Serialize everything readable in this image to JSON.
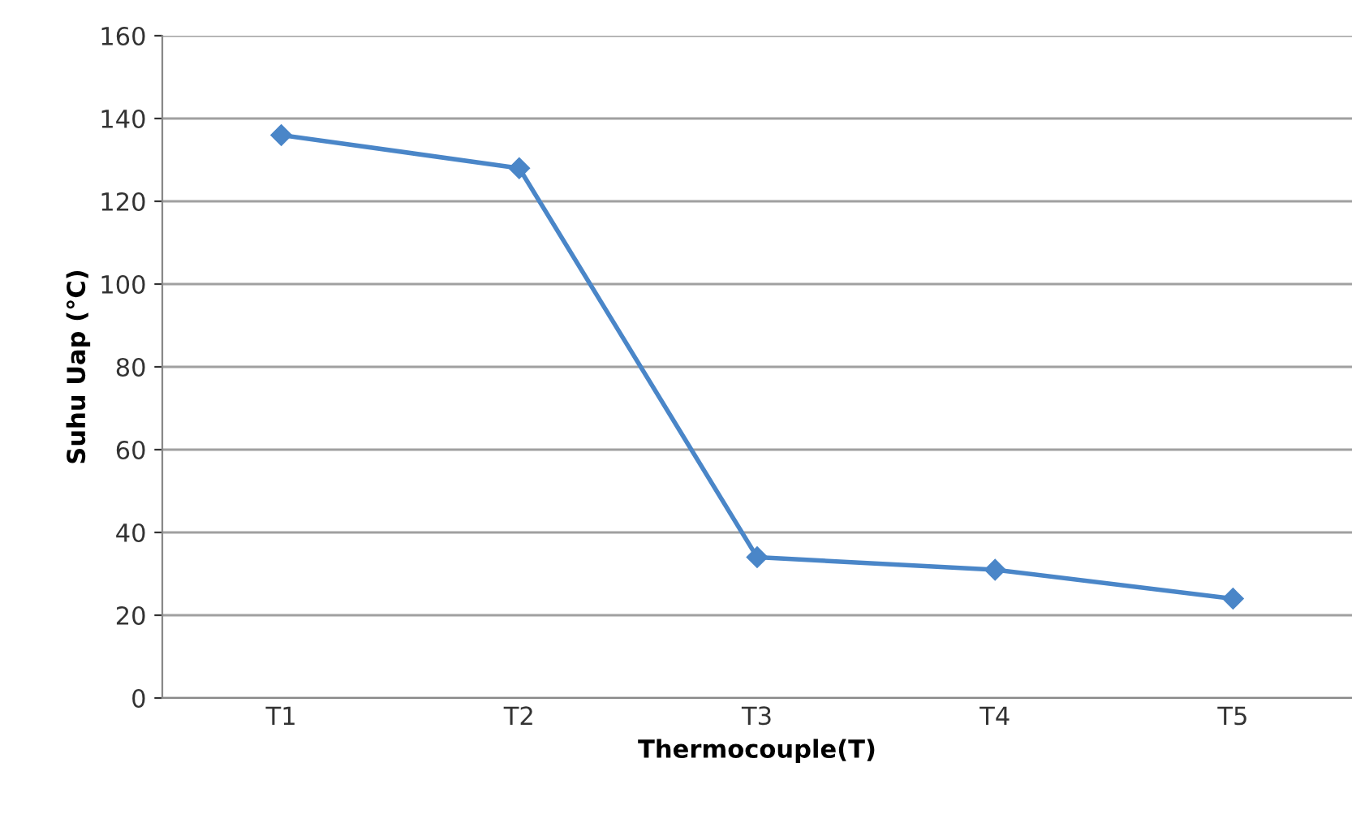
{
  "chart_data": {
    "type": "line",
    "xlabel": "Thermocouple(T)",
    "ylabel": "Suhu Uap (°C)",
    "categories": [
      "T1",
      "T2",
      "T3",
      "T4",
      "T5"
    ],
    "series": [
      {
        "color": "#4a86c8",
        "values": [
          136,
          128,
          34,
          31,
          24
        ]
      }
    ],
    "ylim": [
      0,
      160
    ],
    "yticks": [
      0,
      20,
      40,
      60,
      80,
      100,
      120,
      140,
      160
    ],
    "grid": "y",
    "marker": "diamond",
    "line_style": "solid"
  }
}
